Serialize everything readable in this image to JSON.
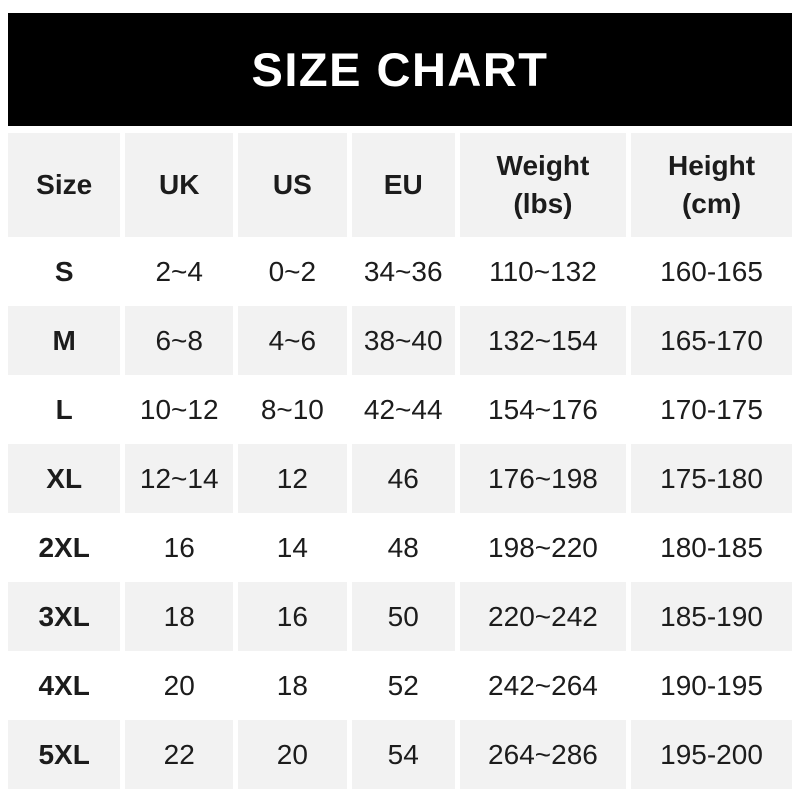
{
  "banner": {
    "title": "SIZE CHART"
  },
  "colors": {
    "banner_bg": "#000000",
    "banner_text": "#ffffff",
    "row_alt_bg": "#f2f2f2",
    "row_bg": "#ffffff",
    "text": "#1c1c1c"
  },
  "chart_data": {
    "type": "table",
    "title": "SIZE CHART",
    "columns": [
      {
        "key": "size",
        "label": "Size"
      },
      {
        "key": "uk",
        "label": "UK"
      },
      {
        "key": "us",
        "label": "US"
      },
      {
        "key": "eu",
        "label": "EU"
      },
      {
        "key": "weight",
        "label": "Weight\n(lbs)"
      },
      {
        "key": "height",
        "label": "Height\n(cm)"
      }
    ],
    "rows": [
      [
        "S",
        "2~4",
        "0~2",
        "34~36",
        "110~132",
        "160-165"
      ],
      [
        "M",
        "6~8",
        "4~6",
        "38~40",
        "132~154",
        "165-170"
      ],
      [
        "L",
        "10~12",
        "8~10",
        "42~44",
        "154~176",
        "170-175"
      ],
      [
        "XL",
        "12~14",
        "12",
        "46",
        "176~198",
        "175-180"
      ],
      [
        "2XL",
        "16",
        "14",
        "48",
        "198~220",
        "180-185"
      ],
      [
        "3XL",
        "18",
        "16",
        "50",
        "220~242",
        "185-190"
      ],
      [
        "4XL",
        "20",
        "18",
        "52",
        "242~264",
        "190-195"
      ],
      [
        "5XL",
        "22",
        "20",
        "54",
        "264~286",
        "195-200"
      ]
    ],
    "layout": {
      "row_striping": "alternating white / light gray starting with white",
      "size_column_bold": true,
      "grid": "off, white gutters between columns"
    }
  }
}
